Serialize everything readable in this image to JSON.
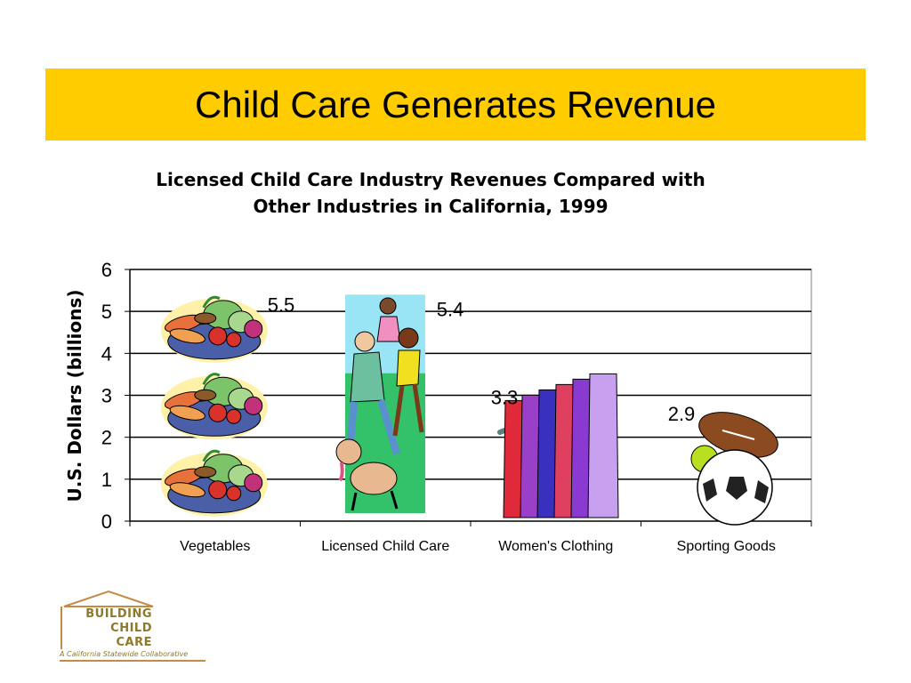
{
  "slide": {
    "title": "Child Care Generates Revenue"
  },
  "colors": {
    "banner": "#FFCC00",
    "logo_text": "#8C7A2A",
    "logo_accent": "#C58A45"
  },
  "logo": {
    "lines": [
      "BUILDING",
      "CHILD",
      "CARE"
    ],
    "tagline": "A California Statewide Collaborative"
  },
  "chart_data": {
    "type": "bar",
    "title_lines": [
      "Licensed Child Care Industry Revenues Compared with",
      "Other Industries in California, 1999"
    ],
    "categories": [
      "Vegetables",
      "Licensed Child Care",
      "Women's Clothing",
      "Sporting Goods"
    ],
    "values": [
      5.5,
      5.4,
      3.3,
      2.9
    ],
    "value_labels": [
      "5.5",
      "5.4",
      "3.3",
      "2.9"
    ],
    "bar_style": [
      "vegetables-pictograph",
      "child-care-picture",
      "clothing-rack-picture",
      "sports-balls-picture"
    ],
    "ylabel": "U.S. Dollars (billions)",
    "xlabel": "",
    "ylim": [
      0,
      6
    ],
    "yticks": [
      0,
      1,
      2,
      3,
      4,
      5,
      6
    ],
    "grid": true,
    "legend": "none"
  }
}
